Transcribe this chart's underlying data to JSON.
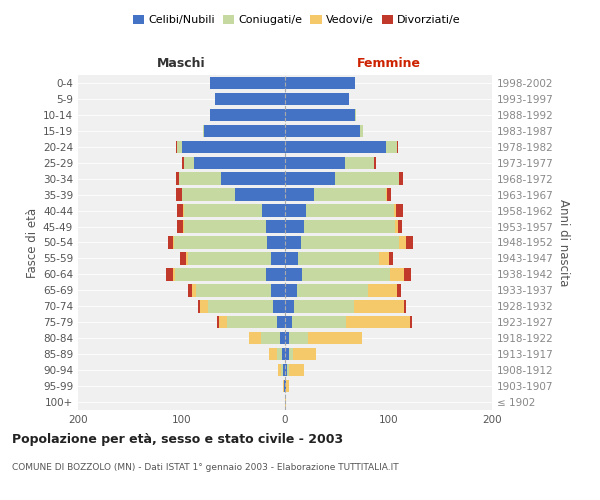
{
  "age_groups": [
    "100+",
    "95-99",
    "90-94",
    "85-89",
    "80-84",
    "75-79",
    "70-74",
    "65-69",
    "60-64",
    "55-59",
    "50-54",
    "45-49",
    "40-44",
    "35-39",
    "30-34",
    "25-29",
    "20-24",
    "15-19",
    "10-14",
    "5-9",
    "0-4"
  ],
  "birth_years": [
    "≤ 1902",
    "1903-1907",
    "1908-1912",
    "1913-1917",
    "1918-1922",
    "1923-1927",
    "1928-1932",
    "1933-1937",
    "1938-1942",
    "1943-1947",
    "1948-1952",
    "1953-1957",
    "1958-1962",
    "1963-1967",
    "1968-1972",
    "1973-1977",
    "1978-1982",
    "1983-1987",
    "1988-1992",
    "1993-1997",
    "1998-2002"
  ],
  "males": {
    "celibi": [
      0,
      1,
      2,
      3,
      5,
      8,
      12,
      14,
      18,
      14,
      17,
      18,
      22,
      48,
      62,
      88,
      100,
      78,
      72,
      68,
      72
    ],
    "coniugati": [
      0,
      0,
      2,
      5,
      18,
      48,
      62,
      72,
      88,
      80,
      90,
      80,
      76,
      52,
      40,
      10,
      4,
      1,
      0,
      0,
      0
    ],
    "vedovi": [
      0,
      1,
      3,
      7,
      12,
      8,
      8,
      4,
      2,
      2,
      1,
      1,
      1,
      0,
      0,
      0,
      0,
      0,
      0,
      0,
      0
    ],
    "divorziati": [
      0,
      0,
      0,
      0,
      0,
      2,
      2,
      4,
      7,
      5,
      5,
      5,
      5,
      5,
      3,
      2,
      1,
      0,
      0,
      0,
      0
    ]
  },
  "females": {
    "nubili": [
      0,
      1,
      2,
      4,
      4,
      7,
      9,
      12,
      16,
      13,
      15,
      18,
      20,
      28,
      48,
      58,
      98,
      72,
      68,
      62,
      68
    ],
    "coniugate": [
      0,
      0,
      2,
      4,
      18,
      52,
      58,
      68,
      85,
      78,
      95,
      88,
      85,
      70,
      62,
      28,
      10,
      3,
      1,
      0,
      0
    ],
    "vedove": [
      1,
      3,
      14,
      22,
      52,
      62,
      48,
      28,
      14,
      9,
      7,
      3,
      2,
      1,
      0,
      0,
      0,
      0,
      0,
      0,
      0
    ],
    "divorziate": [
      0,
      0,
      0,
      0,
      0,
      2,
      2,
      4,
      7,
      4,
      7,
      4,
      7,
      3,
      4,
      2,
      1,
      0,
      0,
      0,
      0
    ]
  },
  "colors": {
    "celibi": "#4472C4",
    "coniugati": "#C5D9A0",
    "vedovi": "#F5C96A",
    "divorziati": "#C0392B"
  },
  "xlim": 200,
  "title": "Popolazione per età, sesso e stato civile - 2003",
  "subtitle": "COMUNE DI BOZZOLO (MN) - Dati ISTAT 1° gennaio 2003 - Elaborazione TUTTITALIA.IT",
  "ylabel_left": "Fasce di età",
  "ylabel_right": "Anni di nascita",
  "xlabel_left": "Maschi",
  "xlabel_right": "Femmine",
  "legend_labels": [
    "Celibi/Nubili",
    "Coniugati/e",
    "Vedovi/e",
    "Divorziati/e"
  ]
}
